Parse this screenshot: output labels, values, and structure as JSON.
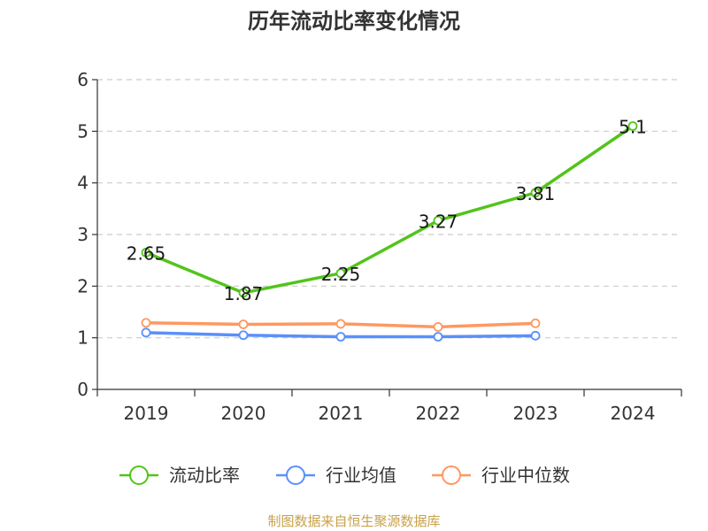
{
  "chart_data": {
    "type": "line",
    "title": "历年流动比率变化情况",
    "categories": [
      "2019",
      "2020",
      "2021",
      "2022",
      "2023",
      "2024"
    ],
    "y_ticks": [
      "0",
      "1",
      "2",
      "3",
      "4",
      "5",
      "6"
    ],
    "ylim": [
      0,
      6
    ],
    "grid": true,
    "legend_position": "bottom",
    "series": [
      {
        "name": "流动比率",
        "color": "#52c41a",
        "values": [
          2.65,
          1.87,
          2.25,
          3.27,
          3.81,
          5.1
        ],
        "labels": [
          "2.65",
          "1.87",
          "2.25",
          "3.27",
          "3.81",
          "5.1"
        ]
      },
      {
        "name": "行业均值",
        "color": "#5b8ff9",
        "values": [
          1.1,
          1.05,
          1.02,
          1.02,
          1.04,
          null
        ]
      },
      {
        "name": "行业中位数",
        "color": "#ff9860",
        "values": [
          1.29,
          1.26,
          1.27,
          1.21,
          1.28,
          null
        ]
      }
    ]
  },
  "source": "制图数据来自恒生聚源数据库"
}
